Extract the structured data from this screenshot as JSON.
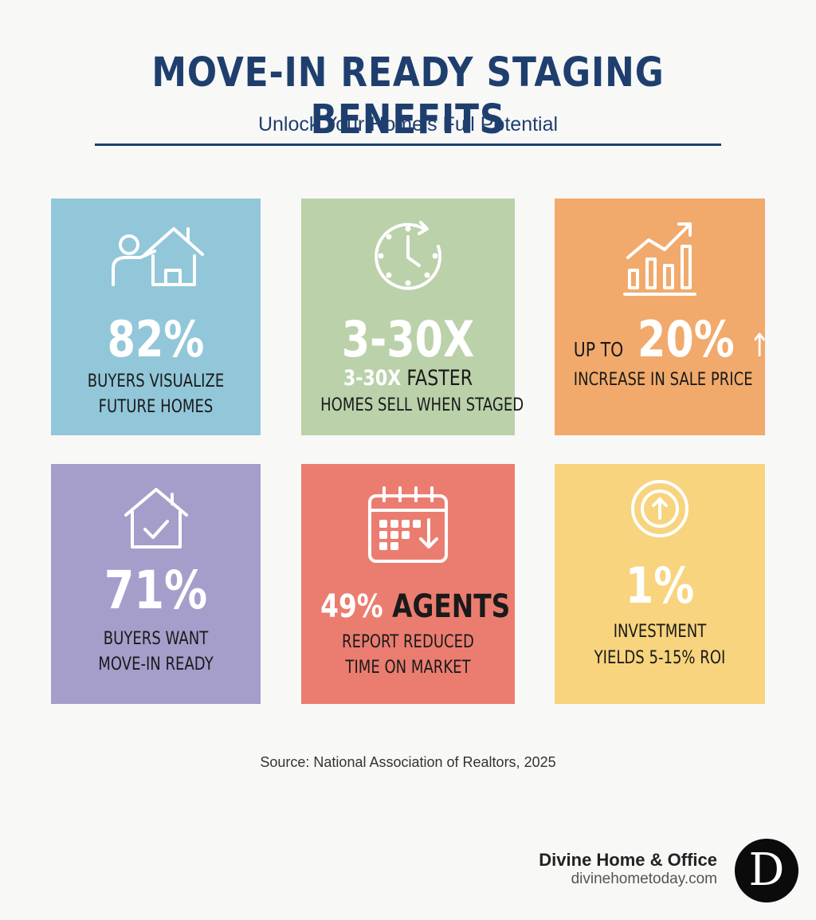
{
  "header": {
    "title": "MOVE-IN READY STAGING BENEFITS",
    "subtitle": "Unlock Your Home’s Full Potential"
  },
  "cards": [
    {
      "color": "#92c7d9",
      "icon": "person-house-icon",
      "stat": "82%",
      "line1": "BUYERS VISUALIZE",
      "line2": "FUTURE HOMES"
    },
    {
      "color": "#bad1aa",
      "icon": "clock-icon",
      "stat": "3-30X",
      "stat_inline": "3-30X",
      "line1_rest": "FASTER",
      "line2": "HOMES SELL WHEN STAGED"
    },
    {
      "color": "#f1aa6c",
      "icon": "bar-chart-growth-icon",
      "prefix": "UP TO",
      "stat": "20%",
      "arrow": "↑",
      "line1": "INCREASE IN SALE PRICE"
    },
    {
      "color": "#a59ecb",
      "icon": "house-check-icon",
      "stat": "71%",
      "line1": "BUYERS WANT",
      "line2": "MOVE-IN READY"
    },
    {
      "color": "#eb7d70",
      "icon": "calendar-down-icon",
      "stat": "49%",
      "stat_rest": "AGENTS",
      "line1": "REPORT REDUCED",
      "line2": "TIME ON MARKET"
    },
    {
      "color": "#f7d47d",
      "icon": "circle-up-arrow-icon",
      "stat": "1%",
      "line1": "INVESTMENT",
      "line2": "YIELDS 5-15% ROI"
    }
  ],
  "footer": {
    "source": "Source: National Association of Realtors, 2025",
    "brand_name": "Divine Home & Office",
    "brand_url": "divinehometoday.com",
    "logo_letter": "D"
  }
}
